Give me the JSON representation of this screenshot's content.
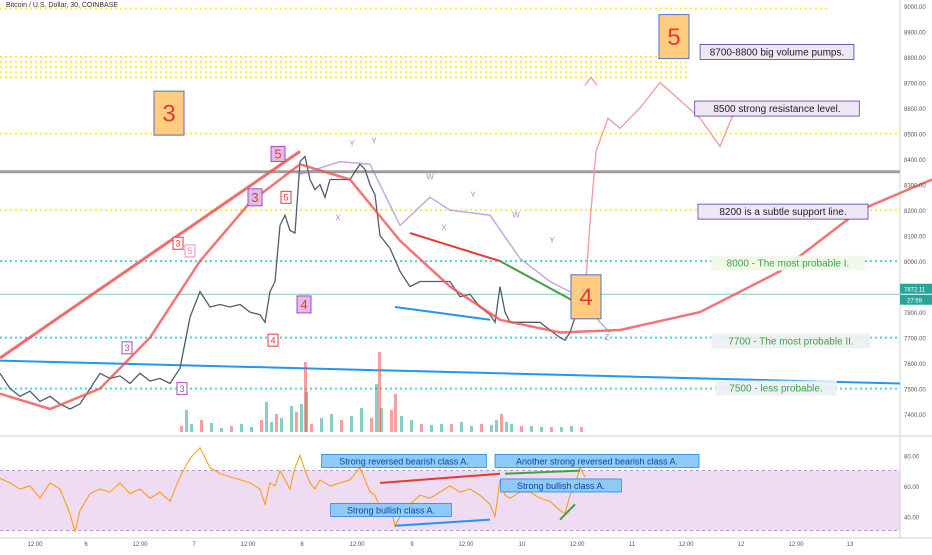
{
  "header": {
    "title": "Bitcoin / U.S. Dollar, 30, COINBASE"
  },
  "colors": {
    "up": "#26a69a",
    "down": "#ef5350",
    "redline": "#ef5350",
    "blueline": "#2196f3",
    "green": "#43a047",
    "dotted": "#ffeb3b",
    "teal_dotted": "#4dd0e1",
    "rsi": "#ff9800",
    "rsi_band": "#e1bee7",
    "purple": "#9575cd"
  },
  "chart_data": [
    {
      "type": "line",
      "title": "Bitcoin / U.S. Dollar, 30, COINBASE",
      "ylim": [
        7330,
        9000
      ],
      "y_ticks": [
        9000,
        8900,
        8800,
        8700,
        8600,
        8500,
        8400,
        8300,
        8200,
        8100,
        8000,
        7900,
        7800,
        7700,
        7600,
        7500,
        7400
      ],
      "x_ticks": [
        "12:00",
        "6",
        "12:00",
        "7",
        "12:00",
        "8",
        "12:00",
        "9",
        "12:00",
        "10",
        "12:00",
        "11",
        "12:00",
        "12",
        "12:00",
        "13"
      ],
      "price_label": "7872.11",
      "time_label": "27:59",
      "price_series": {
        "name": "",
        "points": [
          [
            0,
            7560
          ],
          [
            10,
            7500
          ],
          [
            20,
            7470
          ],
          [
            30,
            7490
          ],
          [
            40,
            7450
          ],
          [
            50,
            7470
          ],
          [
            60,
            7440
          ],
          [
            70,
            7420
          ],
          [
            80,
            7440
          ],
          [
            90,
            7500
          ],
          [
            100,
            7560
          ],
          [
            110,
            7540
          ],
          [
            120,
            7550
          ],
          [
            130,
            7520
          ],
          [
            140,
            7560
          ],
          [
            150,
            7530
          ],
          [
            160,
            7540
          ],
          [
            170,
            7520
          ],
          [
            180,
            7580
          ],
          [
            190,
            7780
          ],
          [
            200,
            7880
          ],
          [
            210,
            7820
          ],
          [
            220,
            7830
          ],
          [
            230,
            7820
          ],
          [
            240,
            7830
          ],
          [
            250,
            7800
          ],
          [
            260,
            7790
          ],
          [
            265,
            7760
          ],
          [
            270,
            7880
          ],
          [
            275,
            7920
          ],
          [
            280,
            8140
          ],
          [
            285,
            8180
          ],
          [
            290,
            8120
          ],
          [
            295,
            8110
          ],
          [
            300,
            8390
          ],
          [
            305,
            8410
          ],
          [
            310,
            8320
          ],
          [
            315,
            8280
          ],
          [
            320,
            8300
          ],
          [
            325,
            8250
          ],
          [
            330,
            8320
          ],
          [
            340,
            8320
          ],
          [
            350,
            8320
          ],
          [
            360,
            8380
          ],
          [
            365,
            8360
          ],
          [
            370,
            8300
          ],
          [
            375,
            8260
          ],
          [
            380,
            8100
          ],
          [
            390,
            8050
          ],
          [
            400,
            7960
          ],
          [
            410,
            7900
          ],
          [
            420,
            7920
          ],
          [
            430,
            7920
          ],
          [
            440,
            7920
          ],
          [
            450,
            7920
          ],
          [
            460,
            7860
          ],
          [
            470,
            7870
          ],
          [
            480,
            7820
          ],
          [
            490,
            7790
          ],
          [
            495,
            7760
          ],
          [
            500,
            7900
          ],
          [
            505,
            7800
          ],
          [
            510,
            7760
          ],
          [
            520,
            7760
          ],
          [
            530,
            7760
          ],
          [
            540,
            7760
          ],
          [
            550,
            7730
          ],
          [
            560,
            7700
          ],
          [
            565,
            7690
          ],
          [
            570,
            7720
          ],
          [
            575,
            7780
          ],
          [
            580,
            7880
          ],
          [
            585,
            7872
          ]
        ]
      },
      "volume": [
        [
          180,
          6
        ],
        [
          185,
          22
        ],
        [
          190,
          8
        ],
        [
          200,
          12
        ],
        [
          210,
          9
        ],
        [
          220,
          4
        ],
        [
          230,
          6
        ],
        [
          240,
          8
        ],
        [
          250,
          5
        ],
        [
          260,
          12
        ],
        [
          265,
          30
        ],
        [
          270,
          10
        ],
        [
          275,
          18
        ],
        [
          280,
          14
        ],
        [
          290,
          26
        ],
        [
          295,
          20
        ],
        [
          300,
          28
        ],
        [
          305,
          40
        ],
        [
          310,
          8
        ],
        [
          320,
          14
        ],
        [
          330,
          18
        ],
        [
          340,
          12
        ],
        [
          350,
          16
        ],
        [
          360,
          24
        ],
        [
          370,
          14
        ],
        [
          375,
          48
        ],
        [
          380,
          24
        ],
        [
          390,
          22
        ],
        [
          400,
          16
        ],
        [
          410,
          12
        ],
        [
          420,
          8
        ],
        [
          430,
          7
        ],
        [
          440,
          8
        ],
        [
          450,
          8
        ],
        [
          460,
          10
        ],
        [
          470,
          6
        ],
        [
          480,
          8
        ],
        [
          490,
          7
        ],
        [
          495,
          12
        ],
        [
          500,
          18
        ],
        [
          505,
          10
        ],
        [
          510,
          8
        ],
        [
          520,
          6
        ],
        [
          530,
          6
        ],
        [
          540,
          5
        ],
        [
          550,
          5
        ],
        [
          560,
          5
        ],
        [
          570,
          6
        ],
        [
          580,
          5
        ]
      ],
      "volume_spikes": [
        [
          304,
          70
        ],
        [
          378,
          80
        ],
        [
          394,
          38
        ]
      ],
      "annotations": {
        "wave_labels": [
          {
            "text": "3",
            "x": 178,
            "y": 8070,
            "style": "box-red"
          },
          {
            "text": "5",
            "x": 190,
            "y": 8040,
            "style": "box-red-light"
          },
          {
            "text": "3",
            "x": 127,
            "y": 7660,
            "style": "box-purple"
          },
          {
            "text": "3",
            "x": 182,
            "y": 7500,
            "style": "box-purple"
          },
          {
            "text": "3",
            "x": 255,
            "y": 8250,
            "style": "box-purple-big"
          },
          {
            "text": "5",
            "x": 286,
            "y": 8250,
            "style": "box-red"
          },
          {
            "text": "5",
            "x": 278,
            "y": 8420,
            "style": "box-red-big"
          },
          {
            "text": "4",
            "x": 304,
            "y": 7830,
            "style": "box-purple-big"
          },
          {
            "text": "4",
            "x": 273,
            "y": 7690,
            "style": "box-red"
          },
          {
            "text": "4",
            "x": 586,
            "y": 7860,
            "style": "big-orange-box"
          },
          {
            "text": "3",
            "x": 169,
            "y": 8580,
            "style": "big-orange-box"
          },
          {
            "text": "5",
            "x": 674,
            "y": 8880,
            "style": "big-orange-box"
          }
        ],
        "letter_labels": [
          {
            "text": "X",
            "x": 338,
            "y": 8160
          },
          {
            "text": "Y",
            "x": 352,
            "y": 8450
          },
          {
            "text": "Y",
            "x": 374,
            "y": 8460
          },
          {
            "text": "W",
            "x": 430,
            "y": 8320
          },
          {
            "text": "X",
            "x": 444,
            "y": 8120
          },
          {
            "text": "Y",
            "x": 473,
            "y": 8250
          },
          {
            "text": "W",
            "x": 516,
            "y": 8170
          },
          {
            "text": "Y",
            "x": 552,
            "y": 8070
          },
          {
            "text": "Z",
            "x": 607,
            "y": 7690
          }
        ]
      },
      "labels": [
        {
          "text": "8700-8800 big volume pumps.",
          "x": 777,
          "y": 8818,
          "style": "boxed"
        },
        {
          "text": "8500 strong resistance level.",
          "x": 777,
          "y": 8596,
          "style": "boxed"
        },
        {
          "text": "8200 is a subtle support line.",
          "x": 783,
          "y": 8192,
          "style": "boxed"
        },
        {
          "text": "8000 - The most probable I.",
          "x": 788,
          "y": 7990,
          "style": "green-text"
        },
        {
          "text": "7700 - The most probable II.",
          "x": 791,
          "y": 7685,
          "style": "gray-text"
        },
        {
          "text": "7500 - less probable.",
          "x": 776,
          "y": 7500,
          "style": "gray-text"
        }
      ]
    },
    {
      "type": "line",
      "title": "",
      "ylim": [
        28,
        90
      ],
      "y_ticks": [
        80,
        60,
        40
      ],
      "band": [
        31,
        70
      ],
      "rsi_series": {
        "name": "",
        "points": [
          [
            0,
            65
          ],
          [
            10,
            62
          ],
          [
            20,
            58
          ],
          [
            30,
            60
          ],
          [
            40,
            52
          ],
          [
            50,
            62
          ],
          [
            60,
            58
          ],
          [
            70,
            42
          ],
          [
            75,
            30
          ],
          [
            80,
            44
          ],
          [
            90,
            55
          ],
          [
            100,
            58
          ],
          [
            110,
            56
          ],
          [
            120,
            62
          ],
          [
            130,
            55
          ],
          [
            140,
            58
          ],
          [
            150,
            52
          ],
          [
            160,
            56
          ],
          [
            170,
            50
          ],
          [
            180,
            66
          ],
          [
            190,
            78
          ],
          [
            200,
            85
          ],
          [
            210,
            72
          ],
          [
            220,
            68
          ],
          [
            230,
            66
          ],
          [
            240,
            64
          ],
          [
            250,
            62
          ],
          [
            260,
            58
          ],
          [
            265,
            48
          ],
          [
            270,
            62
          ],
          [
            275,
            60
          ],
          [
            280,
            70
          ],
          [
            285,
            64
          ],
          [
            290,
            58
          ],
          [
            295,
            72
          ],
          [
            300,
            80
          ],
          [
            305,
            70
          ],
          [
            310,
            62
          ],
          [
            315,
            58
          ],
          [
            320,
            64
          ],
          [
            330,
            60
          ],
          [
            340,
            62
          ],
          [
            350,
            64
          ],
          [
            360,
            72
          ],
          [
            370,
            56
          ],
          [
            375,
            54
          ],
          [
            380,
            46
          ],
          [
            390,
            48
          ],
          [
            395,
            34
          ],
          [
            400,
            40
          ],
          [
            410,
            48
          ],
          [
            420,
            54
          ],
          [
            430,
            52
          ],
          [
            440,
            56
          ],
          [
            450,
            60
          ],
          [
            460,
            56
          ],
          [
            470,
            58
          ],
          [
            480,
            54
          ],
          [
            490,
            48
          ],
          [
            495,
            40
          ],
          [
            500,
            64
          ],
          [
            505,
            54
          ],
          [
            510,
            52
          ],
          [
            520,
            56
          ],
          [
            530,
            56
          ],
          [
            540,
            52
          ],
          [
            550,
            50
          ],
          [
            560,
            44
          ],
          [
            565,
            42
          ],
          [
            570,
            54
          ],
          [
            575,
            60
          ],
          [
            580,
            72
          ],
          [
            585,
            66
          ]
        ]
      },
      "labels": [
        {
          "text": "Strong reversed bearish class A.",
          "x": 404,
          "y": 76,
          "style": "blue-box"
        },
        {
          "text": "Another strong reversed bearish class A.",
          "x": 597,
          "y": 76,
          "style": "blue-box"
        },
        {
          "text": "Strong bullish class A.",
          "x": 561,
          "y": 60,
          "style": "blue-box"
        },
        {
          "text": "Strong bullish class A.",
          "x": 391,
          "y": 44,
          "style": "blue-box"
        }
      ]
    }
  ]
}
